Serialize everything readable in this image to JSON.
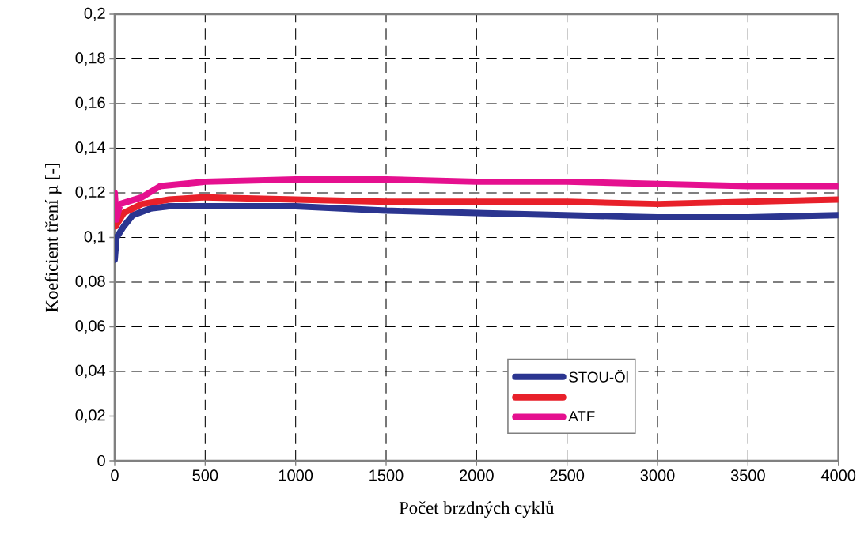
{
  "chart_data": {
    "type": "line",
    "xlabel": "Počet brzdných cyklů",
    "ylabel": "Koeficient tření µ [-]",
    "xlim": [
      0,
      4000
    ],
    "xticks": [
      0,
      500,
      1000,
      1500,
      2000,
      2500,
      3000,
      3500,
      4000
    ],
    "ylim": [
      0,
      0.2
    ],
    "yticks": [
      {
        "value": 0,
        "label": "0"
      },
      {
        "value": 0.02,
        "label": "0,02"
      },
      {
        "value": 0.04,
        "label": "0,04"
      },
      {
        "value": 0.06,
        "label": "0,06"
      },
      {
        "value": 0.08,
        "label": "0,08"
      },
      {
        "value": 0.1,
        "label": "0,1"
      },
      {
        "value": 0.12,
        "label": "0,12"
      },
      {
        "value": 0.14,
        "label": "0,14"
      },
      {
        "value": 0.16,
        "label": "0,16"
      },
      {
        "value": 0.18,
        "label": "0,18"
      },
      {
        "value": 0.2,
        "label": "0,2"
      }
    ],
    "grid": true,
    "legend": "bottom right",
    "marker": "none",
    "line_style": "solid",
    "series": [
      {
        "name": "STOU-Öl",
        "color": "#2b3590",
        "x": [
          0,
          10,
          50,
          100,
          200,
          300,
          1000,
          1500,
          2000,
          2500,
          3000,
          3500,
          4000
        ],
        "values": [
          0.09,
          0.1,
          0.105,
          0.11,
          0.113,
          0.114,
          0.114,
          0.112,
          0.111,
          0.11,
          0.109,
          0.109,
          0.11
        ]
      },
      {
        "color": "#e8202a",
        "x": [
          5,
          50,
          150,
          300,
          500,
          1000,
          1500,
          2000,
          2500,
          3000,
          3500,
          4000
        ],
        "values": [
          0.105,
          0.111,
          0.115,
          0.117,
          0.118,
          0.117,
          0.116,
          0.116,
          0.116,
          0.115,
          0.116,
          0.117
        ]
      },
      {
        "name": "ATF",
        "color": "#e5108f",
        "x": [
          0,
          10,
          30,
          150,
          250,
          500,
          1000,
          1500,
          2000,
          2500,
          3000,
          3500,
          4000
        ],
        "values": [
          0.12,
          0.108,
          0.115,
          0.118,
          0.123,
          0.125,
          0.126,
          0.126,
          0.125,
          0.125,
          0.124,
          0.123,
          0.123
        ]
      }
    ]
  }
}
